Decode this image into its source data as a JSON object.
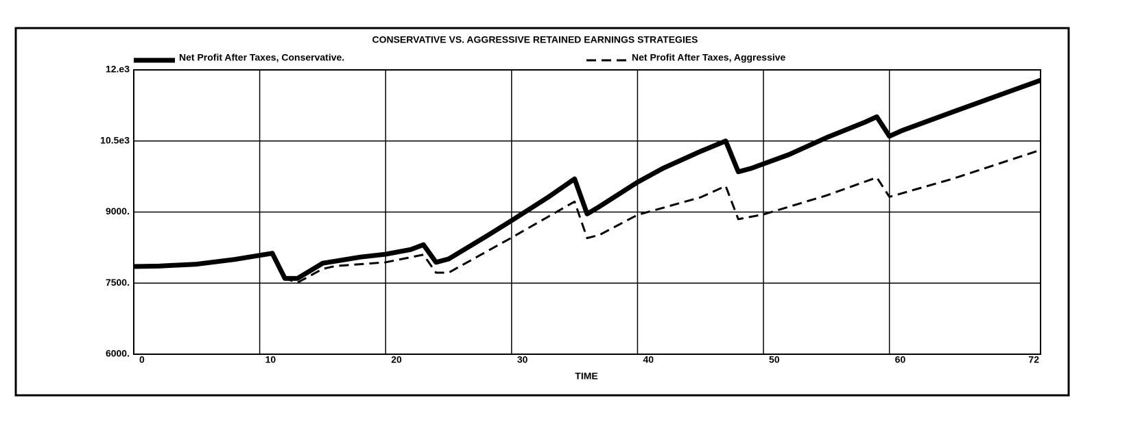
{
  "chart_data": {
    "type": "line",
    "title": "CONSERVATIVE VS. AGGRESSIVE RETAINED EARNINGS STRATEGIES",
    "x_label": "TIME",
    "xlim": [
      0,
      72
    ],
    "xticks": [
      0,
      10,
      20,
      30,
      40,
      50,
      60,
      72
    ],
    "ylim": [
      6000,
      12000
    ],
    "yticks": [
      {
        "value": 6000,
        "label": "6000."
      },
      {
        "value": 7500,
        "label": "7500."
      },
      {
        "value": 9000,
        "label": "9000."
      },
      {
        "value": 10500,
        "label": "10.5e3"
      },
      {
        "value": 12000,
        "label": "12.e3"
      }
    ],
    "grid": true,
    "series": [
      {
        "name": "Net Profit After Taxes, Conservative.",
        "color": "#000000",
        "style": "solid",
        "x": [
          0,
          2,
          5,
          8,
          11,
          12,
          13,
          15,
          18,
          20,
          22,
          23,
          24,
          25,
          28,
          30,
          33,
          35,
          36,
          37,
          40,
          42,
          45,
          47,
          48,
          49,
          52,
          55,
          58,
          59,
          60,
          61,
          65,
          70,
          72
        ],
        "values": [
          7850,
          7860,
          7900,
          8000,
          8130,
          7600,
          7600,
          7920,
          8050,
          8110,
          8210,
          8310,
          7940,
          8010,
          8490,
          8820,
          9330,
          9700,
          8960,
          9120,
          9630,
          9920,
          10280,
          10500,
          9850,
          9920,
          10210,
          10570,
          10890,
          11010,
          10600,
          10720,
          11110,
          11590,
          11780
        ]
      },
      {
        "name": "Net Profit After Taxes, Aggressive",
        "color": "#000000",
        "style": "dashed",
        "x": [
          0,
          2,
          5,
          8,
          11,
          12,
          13,
          15,
          16,
          20,
          23,
          24,
          25,
          30,
          35,
          36,
          37,
          40,
          45,
          47,
          48,
          50,
          55,
          59,
          60,
          65,
          72
        ],
        "values": [
          7850,
          7860,
          7900,
          8000,
          8130,
          7600,
          7510,
          7800,
          7860,
          7940,
          8100,
          7720,
          7720,
          8460,
          9220,
          8450,
          8520,
          8940,
          9310,
          9550,
          8850,
          8950,
          9350,
          9730,
          9320,
          9700,
          10310
        ]
      }
    ]
  }
}
